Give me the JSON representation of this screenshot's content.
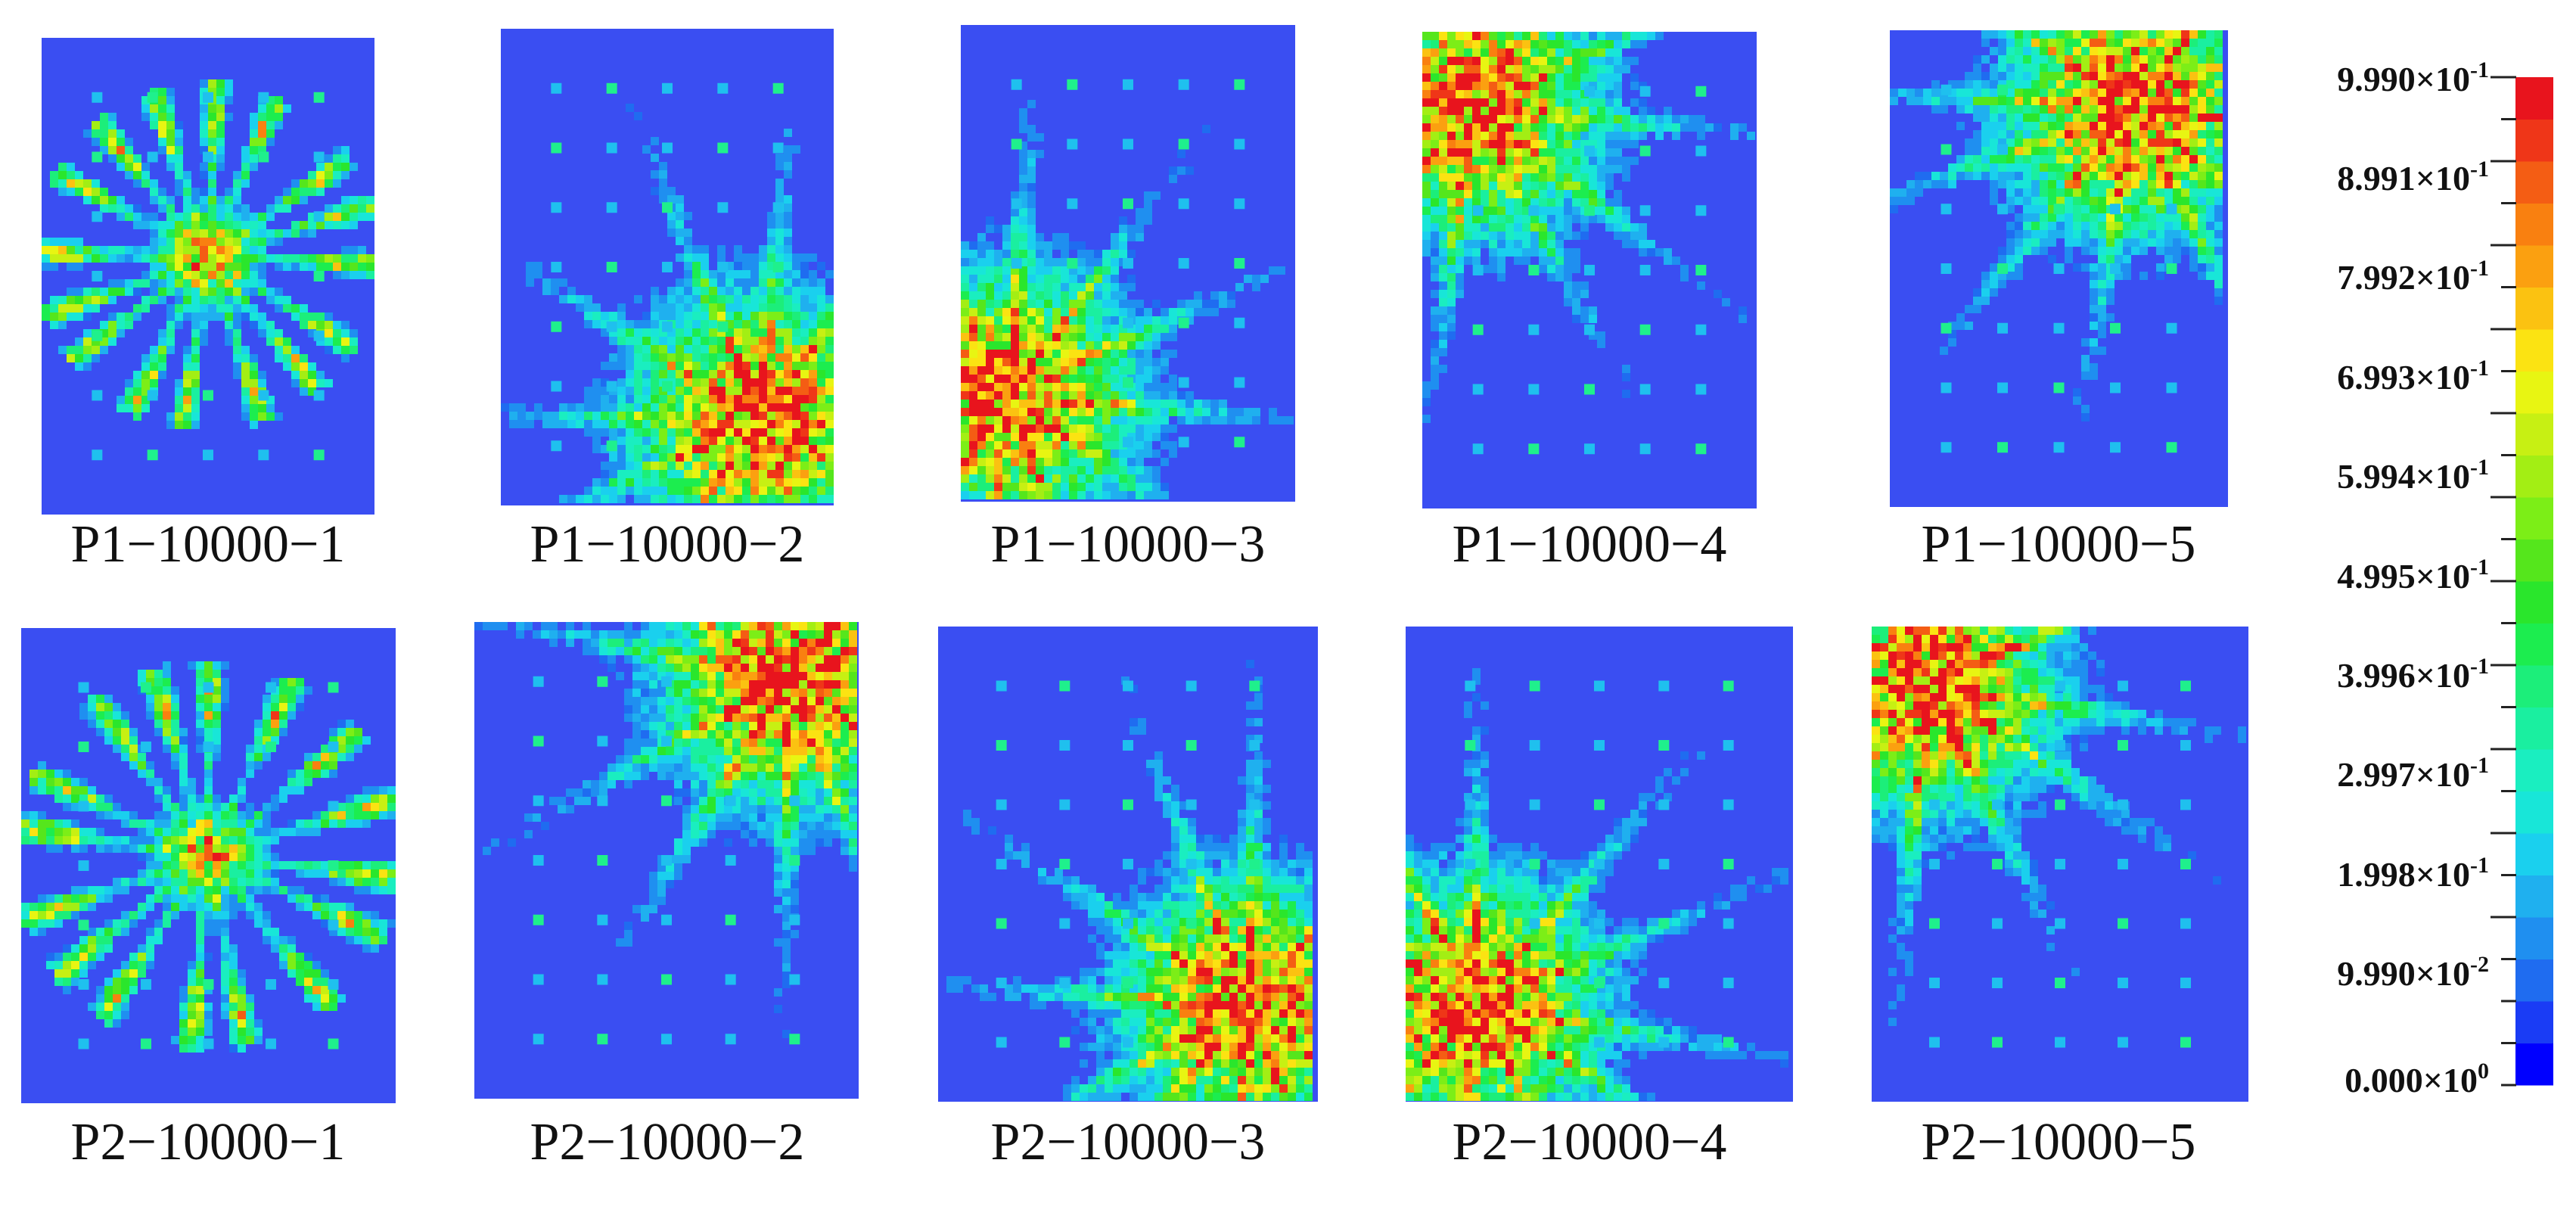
{
  "panels": [
    {
      "label": "P1−10000−1",
      "pattern": "center",
      "focus": [
        0.5,
        0.46
      ]
    },
    {
      "label": "P1−10000−2",
      "pattern": "corner",
      "focus": [
        0.78,
        0.82
      ]
    },
    {
      "label": "P1−10000−3",
      "pattern": "corner",
      "focus": [
        0.14,
        0.78
      ]
    },
    {
      "label": "P1−10000−4",
      "pattern": "corner",
      "focus": [
        0.15,
        0.16
      ]
    },
    {
      "label": "P1−10000−5",
      "pattern": "corner",
      "focus": [
        0.72,
        0.16
      ]
    },
    {
      "label": "P2−10000−1",
      "pattern": "center",
      "focus": [
        0.5,
        0.48
      ]
    },
    {
      "label": "P2−10000−2",
      "pattern": "corner",
      "focus": [
        0.82,
        0.12
      ]
    },
    {
      "label": "P2−10000−3",
      "pattern": "corner",
      "focus": [
        0.82,
        0.8
      ]
    },
    {
      "label": "P2−10000−4",
      "pattern": "corner",
      "focus": [
        0.18,
        0.8
      ]
    },
    {
      "label": "P2−10000−5",
      "pattern": "corner",
      "focus": [
        0.15,
        0.12
      ]
    }
  ],
  "colorbar": {
    "min": 0.0,
    "max": 0.999,
    "levels": 24,
    "colors": [
      "#0000ff",
      "#1a3cf5",
      "#1f6cf0",
      "#1f8ff0",
      "#1fb0ef",
      "#1ad0ee",
      "#18e6d8",
      "#1aeec0",
      "#1aefa0",
      "#1cee7a",
      "#1ced4f",
      "#2ae62c",
      "#55e61c",
      "#7cee17",
      "#a3ee14",
      "#c7f013",
      "#e8f512",
      "#fbe312",
      "#fbc211",
      "#fba010",
      "#f98010",
      "#f45d14",
      "#ef3618",
      "#e8141d"
    ],
    "tick_labels": [
      {
        "mantissa": "9.990",
        "exp": "-1"
      },
      {
        "mantissa": "8.991",
        "exp": "-1"
      },
      {
        "mantissa": "7.992",
        "exp": "-1"
      },
      {
        "mantissa": "6.993",
        "exp": "-1"
      },
      {
        "mantissa": "5.994",
        "exp": "-1"
      },
      {
        "mantissa": "4.995",
        "exp": "-1"
      },
      {
        "mantissa": "3.996",
        "exp": "-1"
      },
      {
        "mantissa": "2.997",
        "exp": "-1"
      },
      {
        "mantissa": "1.998",
        "exp": "-1"
      },
      {
        "mantissa": "9.990",
        "exp": "-2"
      },
      {
        "mantissa": "0.000",
        "exp": "0"
      }
    ],
    "background_color": "#3a4ef2"
  }
}
